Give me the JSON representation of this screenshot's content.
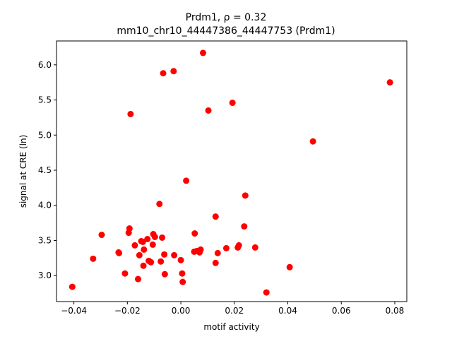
{
  "chart_data": {
    "type": "scatter",
    "title_line1": "Prdm1, ρ = 0.32",
    "title_line2": "mm10_chr10_44447386_44447753 (Prdm1)",
    "xlabel": "motif activity",
    "ylabel": "signal at CRE (ln)",
    "xlim": [
      -0.0465,
      0.0845
    ],
    "ylim": [
      2.63,
      6.34
    ],
    "xticks": [
      -0.04,
      -0.02,
      0.0,
      0.02,
      0.04,
      0.06,
      0.08
    ],
    "xtick_labels": [
      "−0.04",
      "−0.02",
      "0.00",
      "0.02",
      "0.04",
      "0.06",
      "0.08"
    ],
    "yticks": [
      3.0,
      3.5,
      4.0,
      4.5,
      5.0,
      5.5,
      6.0
    ],
    "ytick_labels": [
      "3.0",
      "3.5",
      "4.0",
      "4.5",
      "5.0",
      "5.5",
      "6.0"
    ],
    "marker_color": "#ff0000",
    "grid": false,
    "points": [
      {
        "x": -0.0406,
        "y": 2.84
      },
      {
        "x": -0.0328,
        "y": 3.24
      },
      {
        "x": -0.0296,
        "y": 3.58
      },
      {
        "x": -0.0233,
        "y": 3.33
      },
      {
        "x": -0.0231,
        "y": 3.32
      },
      {
        "x": -0.0209,
        "y": 3.03
      },
      {
        "x": -0.0195,
        "y": 3.61
      },
      {
        "x": -0.0192,
        "y": 3.67
      },
      {
        "x": -0.0188,
        "y": 5.3
      },
      {
        "x": -0.0172,
        "y": 3.43
      },
      {
        "x": -0.016,
        "y": 2.95
      },
      {
        "x": -0.0155,
        "y": 3.29
      },
      {
        "x": -0.0148,
        "y": 3.49
      },
      {
        "x": -0.0142,
        "y": 3.48
      },
      {
        "x": -0.014,
        "y": 3.14
      },
      {
        "x": -0.0138,
        "y": 3.37
      },
      {
        "x": -0.0125,
        "y": 3.52
      },
      {
        "x": -0.012,
        "y": 3.21
      },
      {
        "x": -0.0112,
        "y": 3.19
      },
      {
        "x": -0.0105,
        "y": 3.44
      },
      {
        "x": -0.0103,
        "y": 3.59
      },
      {
        "x": -0.0097,
        "y": 3.55
      },
      {
        "x": -0.008,
        "y": 4.02
      },
      {
        "x": -0.0075,
        "y": 3.2
      },
      {
        "x": -0.007,
        "y": 3.54
      },
      {
        "x": -0.0066,
        "y": 5.88
      },
      {
        "x": -0.006,
        "y": 3.02
      },
      {
        "x": -0.0062,
        "y": 3.3
      },
      {
        "x": -0.0027,
        "y": 5.91
      },
      {
        "x": -0.0025,
        "y": 3.29
      },
      {
        "x": 0.0,
        "y": 3.22
      },
      {
        "x": 0.0005,
        "y": 3.03
      },
      {
        "x": 0.0007,
        "y": 2.91
      },
      {
        "x": 0.002,
        "y": 4.35
      },
      {
        "x": 0.005,
        "y": 3.34
      },
      {
        "x": 0.0052,
        "y": 3.6
      },
      {
        "x": 0.006,
        "y": 3.35
      },
      {
        "x": 0.007,
        "y": 3.33
      },
      {
        "x": 0.0074,
        "y": 3.37
      },
      {
        "x": 0.0083,
        "y": 6.17
      },
      {
        "x": 0.0103,
        "y": 5.35
      },
      {
        "x": 0.013,
        "y": 3.84
      },
      {
        "x": 0.013,
        "y": 3.18
      },
      {
        "x": 0.0138,
        "y": 3.32
      },
      {
        "x": 0.017,
        "y": 3.39
      },
      {
        "x": 0.0193,
        "y": 5.46
      },
      {
        "x": 0.0213,
        "y": 3.4
      },
      {
        "x": 0.0217,
        "y": 3.43
      },
      {
        "x": 0.0237,
        "y": 3.7
      },
      {
        "x": 0.0241,
        "y": 4.14
      },
      {
        "x": 0.0278,
        "y": 3.4
      },
      {
        "x": 0.032,
        "y": 2.76
      },
      {
        "x": 0.0407,
        "y": 3.12
      },
      {
        "x": 0.0494,
        "y": 4.91
      },
      {
        "x": 0.0782,
        "y": 5.75
      }
    ]
  }
}
